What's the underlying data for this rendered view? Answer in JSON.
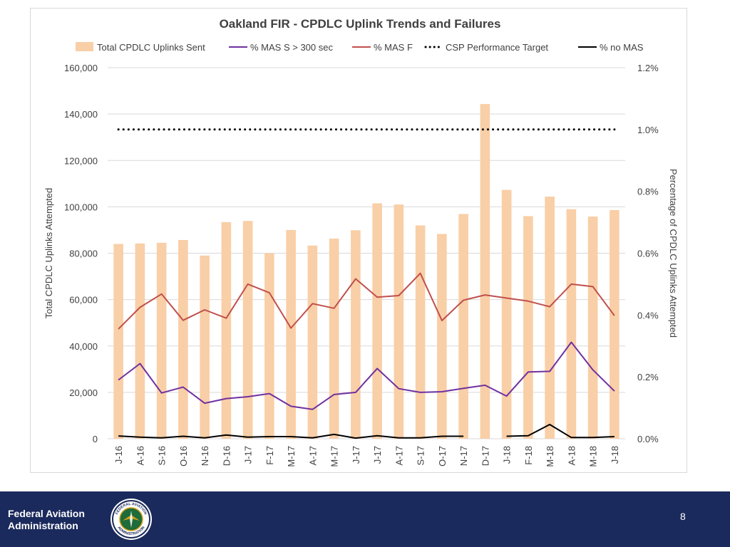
{
  "chart_data": {
    "type": "bar",
    "title": "Oakland FIR - CPDLC Uplink Trends and Failures",
    "ylabel": "Total CPDLC Uplinks Attempted",
    "y2label": "Percentage of CPDLC Uplinks Attempted",
    "ylim": [
      0,
      160000
    ],
    "y2lim": [
      0,
      0.012
    ],
    "yticks": [
      "0",
      "20,000",
      "40,000",
      "60,000",
      "80,000",
      "100,000",
      "120,000",
      "140,000",
      "160,000"
    ],
    "y2ticks": [
      "0.0%",
      "0.2%",
      "0.4%",
      "0.6%",
      "0.8%",
      "1.0%",
      "1.2%"
    ],
    "legend_position": "top",
    "categories": [
      "J-16",
      "A-16",
      "S-16",
      "O-16",
      "N-16",
      "D-16",
      "J-17",
      "F-17",
      "M-17",
      "A-17",
      "M-17",
      "J-17",
      "J-17",
      "A-17",
      "S-17",
      "O-17",
      "N-17",
      "D-17",
      "J-18",
      "F-18",
      "M-18",
      "A-18",
      "M-18",
      "J-18"
    ],
    "series": [
      {
        "name": "Total CPDLC Uplinks Sent",
        "kind": "bar",
        "axis": "left",
        "color": "#f9cfa7",
        "values": [
          84000,
          84200,
          84500,
          85700,
          79000,
          93400,
          93900,
          80000,
          90000,
          83300,
          86300,
          89900,
          101500,
          101000,
          92000,
          88300,
          96900,
          144300,
          107300,
          96000,
          104400,
          99000,
          95800,
          98600
        ]
      },
      {
        "name": "% MAS S > 300 sec",
        "kind": "line",
        "axis": "right",
        "color": "#7030a0",
        "values": [
          0.0019,
          0.00243,
          0.00148,
          0.00167,
          0.00115,
          0.0013,
          0.00136,
          0.00146,
          0.00105,
          0.00095,
          0.00143,
          0.0015,
          0.00227,
          0.00162,
          0.0015,
          0.00152,
          0.00163,
          0.00173,
          0.00138,
          0.00216,
          0.00218,
          0.00312,
          0.00223,
          0.00154
        ]
      },
      {
        "name": "% MAS F",
        "kind": "line",
        "axis": "right",
        "color": "#c0504d",
        "values": [
          0.00355,
          0.00425,
          0.00468,
          0.00383,
          0.00417,
          0.0039,
          0.005,
          0.00472,
          0.00358,
          0.00437,
          0.00422,
          0.00517,
          0.00458,
          0.00463,
          0.00535,
          0.00382,
          0.00448,
          0.00465,
          0.00455,
          0.00445,
          0.00427,
          0.005,
          0.00492,
          0.00398
        ]
      },
      {
        "name": "CSP Performance Target",
        "kind": "dotted-line",
        "axis": "right",
        "color": "#000000",
        "values": [
          0.01,
          0.01,
          0.01,
          0.01,
          0.01,
          0.01,
          0.01,
          0.01,
          0.01,
          0.01,
          0.01,
          0.01,
          0.01,
          0.01,
          0.01,
          0.01,
          0.01,
          0.01,
          0.01,
          0.01,
          0.01,
          0.01,
          0.01,
          0.01
        ]
      },
      {
        "name": "% no MAS",
        "kind": "line",
        "axis": "right",
        "color": "#000000",
        "values": [
          9e-05,
          5e-05,
          3e-05,
          8e-05,
          3e-05,
          0.00012,
          5e-05,
          7e-05,
          7e-05,
          3e-05,
          0.00014,
          2e-05,
          0.0001,
          3e-05,
          3e-05,
          8e-05,
          8e-05,
          null,
          8e-05,
          0.0001,
          0.00046,
          4e-05,
          4e-05,
          7e-05
        ]
      }
    ]
  },
  "footer": {
    "org_line1": "Federal Aviation",
    "org_line2": "Administration",
    "page_number": "8",
    "seal_top_text": "FEDERAL AVIATION",
    "seal_bottom_text": "ADMINISTRATION"
  }
}
